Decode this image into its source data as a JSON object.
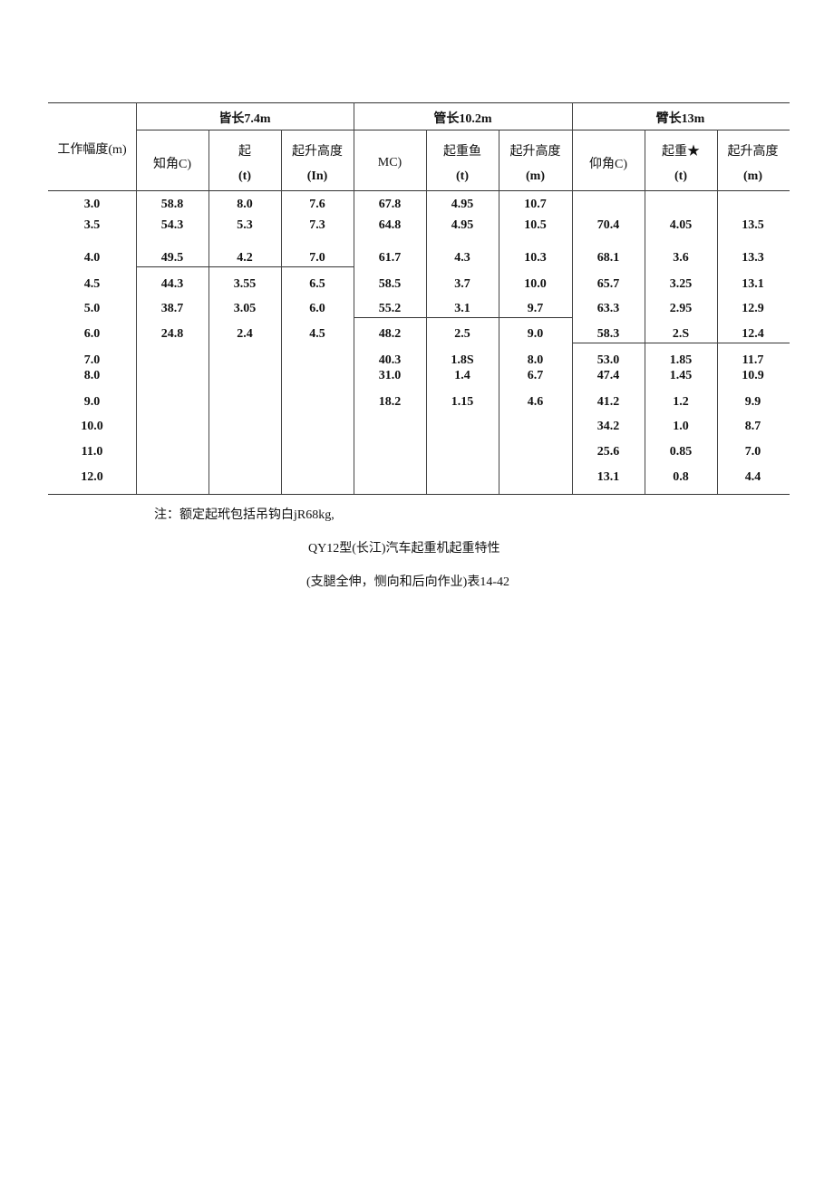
{
  "table": {
    "row_header": "工作幅度(m)",
    "groups": [
      "皆长7.4m",
      "管长10.2m",
      "臂长13m"
    ],
    "subheaders": [
      [
        "知角C)",
        ""
      ],
      [
        "起",
        "(t)"
      ],
      [
        "起升高度",
        "(In)"
      ],
      [
        "MC)",
        ""
      ],
      [
        "起重鱼",
        "(t)"
      ],
      [
        "起升高度",
        "(m)"
      ],
      [
        "仰角C)",
        ""
      ],
      [
        "起重★",
        "(t)"
      ],
      [
        "起升高度",
        "(m)"
      ]
    ],
    "rows": [
      [
        "3.0",
        "58.8",
        "8.0",
        "7.6",
        "67.8",
        "4.95",
        "10.7",
        "",
        "",
        ""
      ],
      [
        "3.5",
        "54.3",
        "5.3",
        "7.3",
        "64.8",
        "4.95",
        "10.5",
        "70.4",
        "4.05",
        "13.5"
      ],
      [
        "4.0",
        "49.5",
        "4.2",
        "7.0",
        "61.7",
        "4.3",
        "10.3",
        "68.1",
        "3.6",
        "13.3"
      ],
      [
        "4.5",
        "44.3",
        "3.55",
        "6.5",
        "58.5",
        "3.7",
        "10.0",
        "65.7",
        "3.25",
        "13.1"
      ],
      [
        "5.0",
        "38.7",
        "3.05",
        "6.0",
        "55.2",
        "3.1",
        "9.7",
        "63.3",
        "2.95",
        "12.9"
      ],
      [
        "6.0",
        "24.8",
        "2.4",
        "4.5",
        "48.2",
        "2.5",
        "9.0",
        "58.3",
        "2.S",
        "12.4"
      ],
      [
        "7.0",
        "",
        "",
        "",
        "40.3",
        "1.8S",
        "8.0",
        "53.0",
        "1.85",
        "11.7"
      ],
      [
        "8.0",
        "",
        "",
        "",
        "31.0",
        "1.4",
        "6.7",
        "47.4",
        "1.45",
        "10.9"
      ],
      [
        "9.0",
        "",
        "",
        "",
        "18.2",
        "1.15",
        "4.6",
        "41.2",
        "1.2",
        "9.9"
      ],
      [
        "10.0",
        "",
        "",
        "",
        "",
        "",
        "",
        "34.2",
        "1.0",
        "8.7"
      ],
      [
        "11.0",
        "",
        "",
        "",
        "",
        "",
        "",
        "25.6",
        "0.85",
        "7.0"
      ],
      [
        "12.0",
        "",
        "",
        "",
        "",
        "",
        "",
        "13.1",
        "0.8",
        "4.4"
      ]
    ]
  },
  "note": "注：额定起玳包括吊钩白jR68kg,",
  "caption_title": "QY12型(长江)汽车起重机起重特性",
  "caption_sub": "(支腿全伸，恻向和后向作业)表14-42"
}
